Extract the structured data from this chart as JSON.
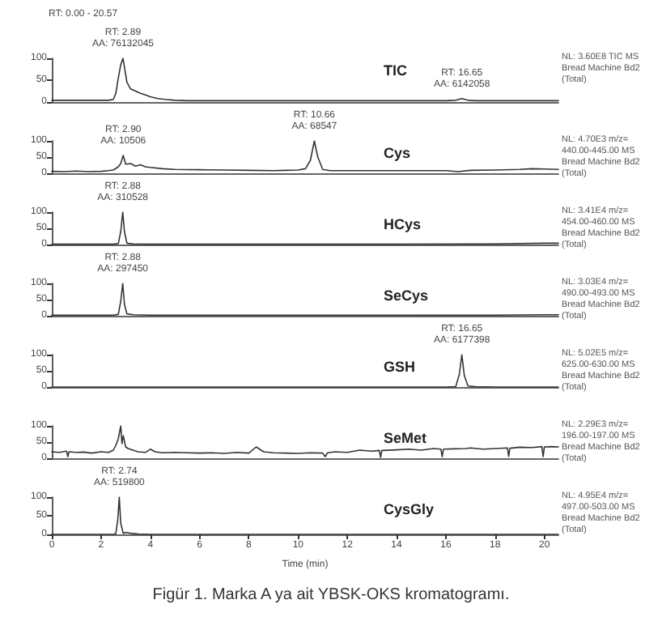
{
  "chart_data": [
    {
      "type": "line",
      "title": "TIC",
      "subtitle": "RT: 0.00 - 20.57",
      "x": [
        0,
        0.5,
        1,
        1.5,
        2,
        2.3,
        2.5,
        2.6,
        2.7,
        2.8,
        2.89,
        2.95,
        3.05,
        3.2,
        3.4,
        3.6,
        3.8,
        4,
        4.3,
        4.6,
        5,
        5.5,
        6,
        8,
        10,
        12,
        14,
        16,
        16.4,
        16.65,
        16.9,
        17.2,
        18,
        19,
        20,
        20.57
      ],
      "values": [
        4,
        4,
        4,
        4,
        4,
        4,
        6,
        20,
        55,
        85,
        100,
        80,
        45,
        30,
        25,
        20,
        16,
        12,
        8,
        6,
        4,
        3,
        3,
        3,
        3,
        3,
        3,
        3,
        4,
        8,
        4,
        3,
        3,
        3,
        3,
        3
      ],
      "color": "#333333",
      "xlim": [
        0,
        20.57
      ],
      "ylim": [
        0,
        100
      ],
      "yticks": [
        0,
        50,
        100
      ],
      "tick_labels": "y",
      "marker": "none",
      "annotations": [
        "NL: 3.60E8 TIC MS Bread Machine Bd2 (Total)",
        {
          "text": "RT: 2.89\nAA: 76132045",
          "x": 2.89,
          "y": 100
        },
        {
          "text": "RT: 16.65\nAA: 6142058",
          "x": 16.65,
          "y": 8
        }
      ]
    },
    {
      "type": "line",
      "title": "Cys",
      "x": [
        0,
        0.5,
        1,
        1.5,
        2,
        2.3,
        2.5,
        2.7,
        2.8,
        2.9,
        3.0,
        3.2,
        3.4,
        3.6,
        3.8,
        4,
        4.5,
        5,
        6,
        7,
        8,
        9,
        9.5,
        10,
        10.3,
        10.5,
        10.66,
        10.8,
        11,
        11.3,
        12,
        13,
        14,
        15,
        16,
        16.5,
        17,
        18,
        19,
        19.5,
        20,
        20.57
      ],
      "values": [
        6,
        5,
        7,
        5,
        6,
        8,
        10,
        20,
        30,
        55,
        28,
        30,
        22,
        26,
        20,
        18,
        14,
        12,
        11,
        10,
        9,
        8,
        9,
        10,
        14,
        40,
        100,
        50,
        12,
        8,
        8,
        8,
        8,
        8,
        8,
        5,
        9,
        10,
        12,
        14,
        13,
        12
      ],
      "color": "#333333",
      "xlim": [
        0,
        20.57
      ],
      "ylim": [
        0,
        100
      ],
      "yticks": [
        0,
        50,
        100
      ],
      "tick_labels": "y",
      "marker": "none",
      "annotations": [
        "NL: 4.70E3 m/z= 440.00-445.00 MS Bread Machine Bd2 (Total)",
        {
          "text": "RT: 2.90\nAA: 10506",
          "x": 2.9,
          "y": 55
        },
        {
          "text": "RT: 10.66\nAA: 68547",
          "x": 10.66,
          "y": 100
        }
      ]
    },
    {
      "type": "line",
      "title": "HCys",
      "x": [
        0,
        1,
        2,
        2.5,
        2.7,
        2.8,
        2.88,
        2.95,
        3.05,
        3.3,
        4,
        6,
        10,
        14,
        18,
        20,
        20.57
      ],
      "values": [
        1,
        1,
        1,
        1,
        3,
        40,
        100,
        40,
        4,
        2,
        1,
        1,
        1,
        1,
        2,
        4,
        4
      ],
      "color": "#333333",
      "xlim": [
        0,
        20.57
      ],
      "ylim": [
        0,
        100
      ],
      "yticks": [
        0,
        50,
        100
      ],
      "tick_labels": "y",
      "marker": "none",
      "annotations": [
        "NL: 3.41E4 m/z= 454.00-460.00 MS Bread Machine Bd2 (Total)",
        {
          "text": "RT: 2.88\nAA: 310528",
          "x": 2.88,
          "y": 100
        }
      ]
    },
    {
      "type": "line",
      "title": "SeCys",
      "x": [
        0,
        1,
        2,
        2.5,
        2.7,
        2.8,
        2.88,
        2.95,
        3.05,
        3.3,
        4,
        6,
        10,
        14,
        18,
        20,
        20.57
      ],
      "values": [
        2,
        2,
        2,
        2,
        4,
        45,
        100,
        35,
        6,
        3,
        2,
        2,
        2,
        2,
        2,
        3,
        3
      ],
      "color": "#333333",
      "xlim": [
        0,
        20.57
      ],
      "ylim": [
        0,
        100
      ],
      "yticks": [
        0,
        50,
        100
      ],
      "tick_labels": "y",
      "marker": "none",
      "annotations": [
        "NL: 3.03E4 m/z= 490.00-493.00 MS Bread Machine Bd2 (Total)",
        {
          "text": "RT: 2.88\nAA: 297450",
          "x": 2.88,
          "y": 100
        }
      ]
    },
    {
      "type": "line",
      "title": "GSH",
      "x": [
        0,
        2,
        5,
        10,
        15,
        16,
        16.4,
        16.55,
        16.65,
        16.75,
        16.9,
        17.2,
        18,
        20,
        20.57
      ],
      "values": [
        0,
        0,
        0,
        0,
        0,
        0,
        1,
        40,
        100,
        35,
        3,
        1,
        0,
        0,
        0
      ],
      "color": "#333333",
      "xlim": [
        0,
        20.57
      ],
      "ylim": [
        0,
        100
      ],
      "yticks": [
        0,
        50,
        100
      ],
      "tick_labels": "y",
      "marker": "none",
      "annotations": [
        "NL: 5.02E5 m/z= 625.00-630.00 MS Bread Machine Bd2 (Total)",
        {
          "text": "RT: 16.65\nAA: 6177398",
          "x": 16.65,
          "y": 100
        }
      ]
    },
    {
      "type": "line",
      "title": "SeMet",
      "x": [
        0,
        0.3,
        0.6,
        0.65,
        0.7,
        1,
        1.3,
        1.6,
        2,
        2.3,
        2.5,
        2.6,
        2.7,
        2.8,
        2.85,
        2.9,
        3.0,
        3.1,
        3.3,
        3.5,
        3.8,
        4.0,
        4.2,
        4.5,
        5,
        5.5,
        6,
        6.5,
        7,
        7.5,
        8,
        8.3,
        8.6,
        9,
        9.5,
        10,
        10.5,
        11,
        11.1,
        11.2,
        11.5,
        12,
        12.5,
        13,
        13.3,
        13.35,
        13.4,
        14,
        14.5,
        15,
        15.5,
        15.8,
        15.85,
        15.9,
        16.3,
        16.8,
        17,
        17.5,
        18,
        18.5,
        18.55,
        18.6,
        19,
        19.5,
        19.9,
        19.95,
        20,
        20.3,
        20.57
      ],
      "values": [
        20,
        18,
        22,
        5,
        20,
        18,
        19,
        16,
        20,
        18,
        25,
        40,
        60,
        100,
        45,
        70,
        35,
        30,
        25,
        20,
        18,
        28,
        20,
        17,
        18,
        17,
        16,
        17,
        15,
        18,
        16,
        35,
        20,
        17,
        16,
        15,
        17,
        16,
        5,
        17,
        20,
        18,
        25,
        22,
        24,
        3,
        24,
        26,
        28,
        25,
        30,
        28,
        5,
        28,
        29,
        30,
        32,
        28,
        30,
        32,
        6,
        31,
        34,
        33,
        36,
        5,
        35,
        36,
        35
      ],
      "color": "#333333",
      "xlim": [
        0,
        20.57
      ],
      "ylim": [
        0,
        100
      ],
      "yticks": [
        0,
        50,
        100
      ],
      "tick_labels": "y",
      "marker": "none",
      "annotations": [
        "NL: 2.29E3 m/z= 196.00-197.00 MS Bread Machine Bd2 (Total)"
      ]
    },
    {
      "type": "line",
      "title": "CysGly",
      "xlabel": "Time (min)",
      "x": [
        0,
        1,
        2,
        2.5,
        2.6,
        2.68,
        2.74,
        2.8,
        2.9,
        3.0,
        3.2,
        3.5,
        4,
        6,
        10,
        15,
        20,
        20.57
      ],
      "values": [
        0,
        0,
        0,
        0,
        2,
        40,
        100,
        30,
        3,
        5,
        3,
        1,
        0,
        0,
        0,
        0,
        0,
        0
      ],
      "color": "#333333",
      "xlim": [
        0,
        20.57
      ],
      "xticks": [
        0,
        2,
        4,
        6,
        8,
        10,
        12,
        14,
        16,
        18,
        20
      ],
      "ylim": [
        0,
        100
      ],
      "yticks": [
        0,
        50,
        100
      ],
      "marker": "none",
      "annotations": [
        "NL: 4.95E4 m/z= 497.00-503.00 MS Bread Machine Bd2 (Total)",
        {
          "text": "RT: 2.74\nAA: 519800",
          "x": 2.74,
          "y": 100
        },
        "Figür 1.  Marka A ya ait YBSK-OKS kromatogramı."
      ]
    }
  ]
}
